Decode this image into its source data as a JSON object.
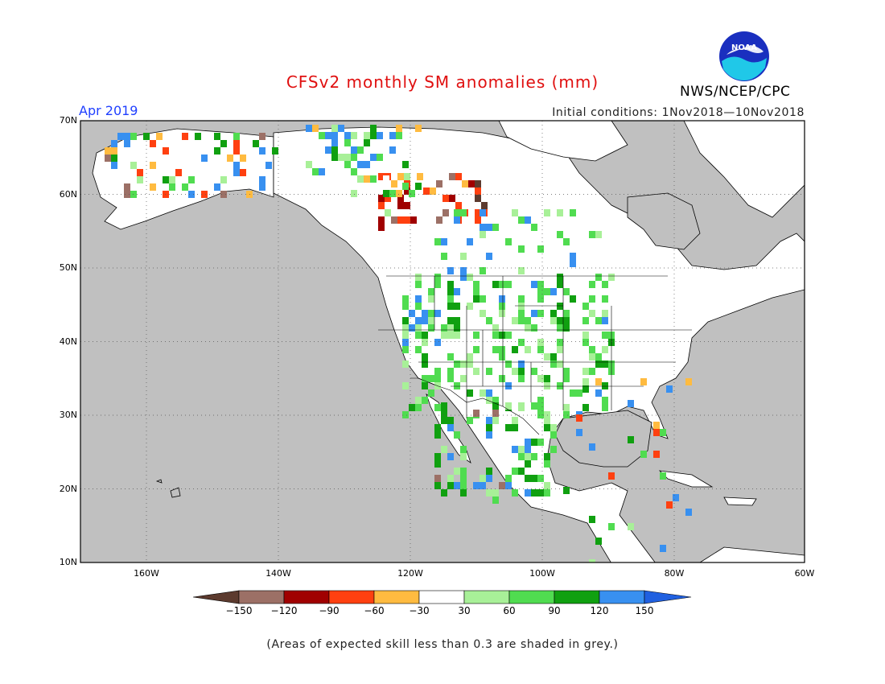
{
  "header": {
    "title": "CFSv2 monthly SM anomalies (mm)",
    "agency": "NWS/NCEP/CPC",
    "period": "Apr 2019",
    "initial_conditions": "Initial conditions: 1Nov2018—10Nov2018",
    "logo_text": "NOAA"
  },
  "map": {
    "lat_labels": [
      "70N",
      "60N",
      "50N",
      "40N",
      "30N",
      "20N",
      "10N"
    ],
    "lon_labels": [
      "160W",
      "140W",
      "120W",
      "100W",
      "80W",
      "60W"
    ],
    "extent": {
      "lon": [
        -170,
        -60
      ],
      "lat": [
        10,
        70
      ]
    },
    "gridlines": "dotted",
    "grey_meaning": "skill below 0.3"
  },
  "colorbar": {
    "tick_labels": [
      "−150",
      "−120",
      "−90",
      "−60",
      "−30",
      "30",
      "60",
      "90",
      "120",
      "150"
    ],
    "colors": [
      "#5c3a2e",
      "#9c7066",
      "#a00000",
      "#ff4010",
      "#ffbb40",
      "#ffffff",
      "#a8f098",
      "#50dc50",
      "#10a010",
      "#3890f0",
      "#2060e0"
    ]
  },
  "colors": {
    "grey": "#c0c0c0",
    "ocean": "#c0c0c0"
  },
  "footer": {
    "note": "(Areas of expected skill less than 0.3 are shaded in grey.)"
  }
}
